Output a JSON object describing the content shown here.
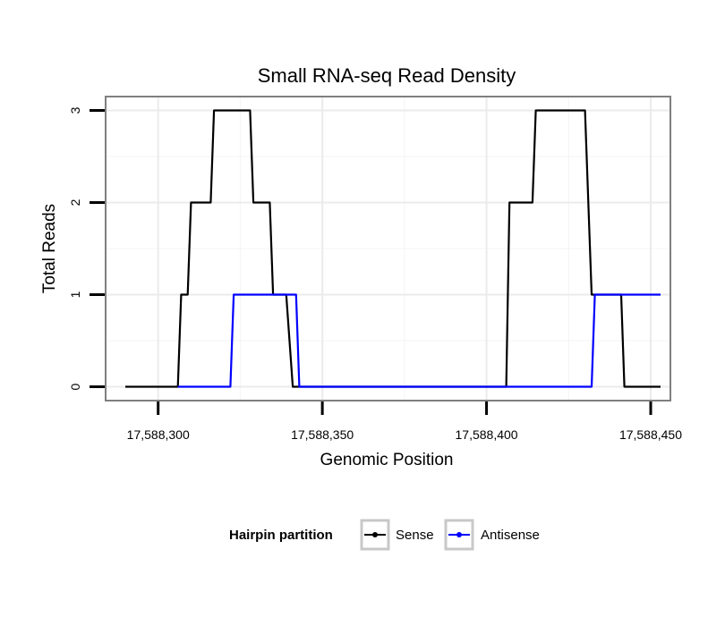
{
  "chart_data": {
    "type": "line",
    "title": "Small RNA-seq Read Density",
    "xlabel": "Genomic Position",
    "ylabel": "Total Reads",
    "xlim": [
      17588284,
      17588456
    ],
    "ylim": [
      -0.15,
      3.15
    ],
    "x_ticks": [
      17588300,
      17588350,
      17588400,
      17588450
    ],
    "x_tick_labels": [
      "17,588,300",
      "17,588,350",
      "17,588,400",
      "17,588,450"
    ],
    "y_ticks": [
      0,
      1,
      2,
      3
    ],
    "y_tick_labels": [
      "0",
      "1",
      "2",
      "3"
    ],
    "grid": true,
    "legend": {
      "title": "Hairpin partition",
      "position": "bottom"
    },
    "series": [
      {
        "name": "Sense",
        "color": "#000000",
        "points": [
          [
            17588290,
            0
          ],
          [
            17588306,
            0
          ],
          [
            17588307,
            1
          ],
          [
            17588309,
            1
          ],
          [
            17588310,
            2
          ],
          [
            17588316,
            2
          ],
          [
            17588317,
            3
          ],
          [
            17588328,
            3
          ],
          [
            17588329,
            2
          ],
          [
            17588334,
            2
          ],
          [
            17588335,
            1
          ],
          [
            17588339,
            1
          ],
          [
            17588341,
            0
          ],
          [
            17588406,
            0
          ],
          [
            17588407,
            2
          ],
          [
            17588414,
            2
          ],
          [
            17588415,
            3
          ],
          [
            17588430,
            3
          ],
          [
            17588432,
            1
          ],
          [
            17588441,
            1
          ],
          [
            17588442,
            0
          ],
          [
            17588453,
            0
          ]
        ]
      },
      {
        "name": "Antisense",
        "color": "#0000ff",
        "points": [
          [
            17588306,
            0
          ],
          [
            17588322,
            0
          ],
          [
            17588323,
            1
          ],
          [
            17588342,
            1
          ],
          [
            17588343,
            0
          ],
          [
            17588432,
            0
          ],
          [
            17588433,
            1
          ],
          [
            17588453,
            1
          ]
        ]
      }
    ]
  }
}
